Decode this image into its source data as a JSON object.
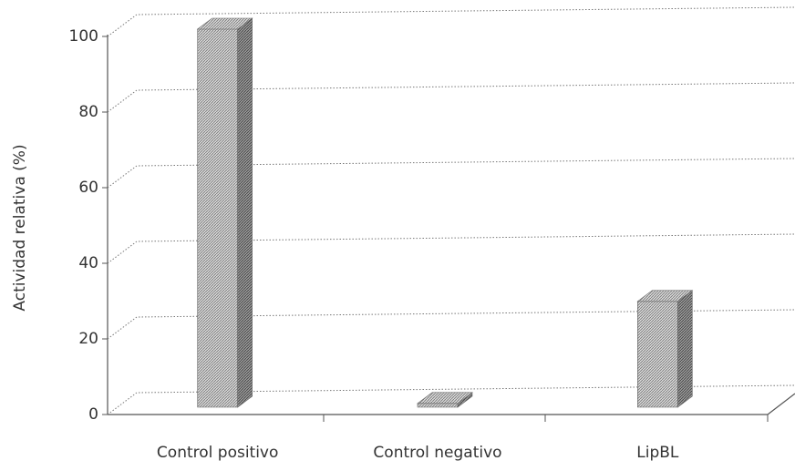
{
  "chart_data": {
    "type": "bar3d",
    "categories": [
      "Control positivo",
      "Control negativo",
      "LipBL"
    ],
    "values": [
      100,
      1,
      28
    ],
    "color": "#b0b0b0",
    "y_label": "Actividad relativa (%)",
    "ylim": [
      0,
      100
    ],
    "yticks": [
      0,
      20,
      40,
      60,
      80,
      100
    ],
    "grid": true
  }
}
